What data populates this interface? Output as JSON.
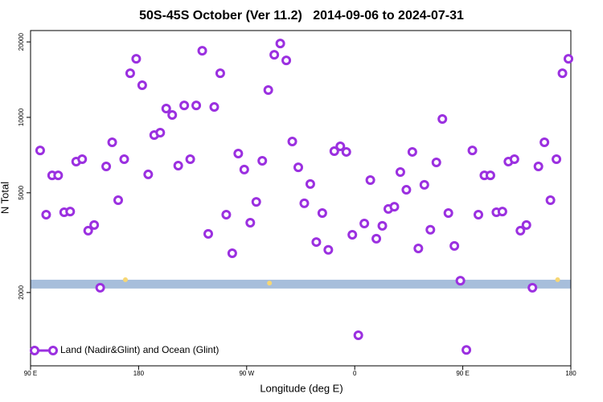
{
  "chart_data": {
    "type": "scatter",
    "title": "50S-45S October (Ver 11.2)   2014-09-06 to 2024-07-31",
    "x_label": "Longitude (deg E)",
    "y_label": "N Total",
    "log_y": true,
    "legend": "bottom-left",
    "xlim": [
      90,
      540
    ],
    "ylim": [
      1020,
      22200
    ],
    "xticks": [
      {
        "value": 90,
        "label": "90 E"
      },
      180,
      {
        "value": 270,
        "label": "90 W"
      },
      {
        "value": 360,
        "label": "0"
      },
      {
        "value": 450,
        "label": "90 E"
      },
      {
        "value": 540,
        "label": "180"
      }
    ],
    "yticks": [
      2000,
      5000,
      10000,
      20000
    ],
    "band": {
      "ylim": [
        2075,
        2250
      ],
      "color": "#a7bedb"
    },
    "series": [
      {
        "name": "Land (Nadir&Glint) and Ocean (Glint)",
        "color": "#9b30e0",
        "x": [
          98,
          103,
          108,
          113,
          118,
          123,
          128,
          133,
          138,
          143,
          148,
          153,
          158,
          163,
          168,
          173,
          178,
          183,
          188,
          193,
          198,
          203,
          208,
          213,
          218,
          223,
          228,
          233,
          238,
          243,
          248,
          253,
          258,
          263,
          268,
          273,
          278,
          283,
          288,
          293,
          298,
          303,
          308,
          313,
          318,
          323,
          328,
          333,
          338,
          343,
          348,
          353,
          358,
          363,
          368,
          373,
          378,
          383,
          388,
          393,
          398,
          403,
          408,
          413,
          418,
          423,
          428,
          433,
          438,
          443,
          448,
          453,
          458,
          463,
          468,
          473,
          478,
          483,
          488,
          493,
          498,
          503,
          508,
          513,
          518,
          523,
          528,
          533,
          538
        ],
        "values": [
          7380,
          4090,
          5870,
          5870,
          4180,
          4210,
          6660,
          6810,
          3530,
          3720,
          2090,
          6370,
          7950,
          4670,
          6810,
          15000,
          17130,
          13430,
          5920,
          8500,
          8690,
          10840,
          10220,
          6420,
          11160,
          6810,
          11160,
          18440,
          3430,
          11000,
          15000,
          4090,
          2870,
          7170,
          6190,
          3800,
          4600,
          6710,
          12850,
          17770,
          19710,
          16880,
          8010,
          6320,
          4540,
          5420,
          3180,
          4150,
          2960,
          7330,
          7660,
          7280,
          3400,
          1350,
          3770,
          5620,
          3280,
          3690,
          4310,
          4400,
          6050,
          5140,
          7280,
          3000,
          5380,
          3560,
          6610,
          9850,
          4150,
          3070,
          2230,
          1180,
          7380,
          4090,
          5870,
          5870,
          4180,
          4210,
          6660,
          6810,
          3530,
          3720,
          2090,
          6370,
          7950,
          4670,
          6810,
          15000,
          17130
        ]
      },
      {
        "color": "#f7d774",
        "x": [
          169,
          289,
          529
        ],
        "values": [
          2250,
          2180,
          2250
        ]
      }
    ]
  }
}
